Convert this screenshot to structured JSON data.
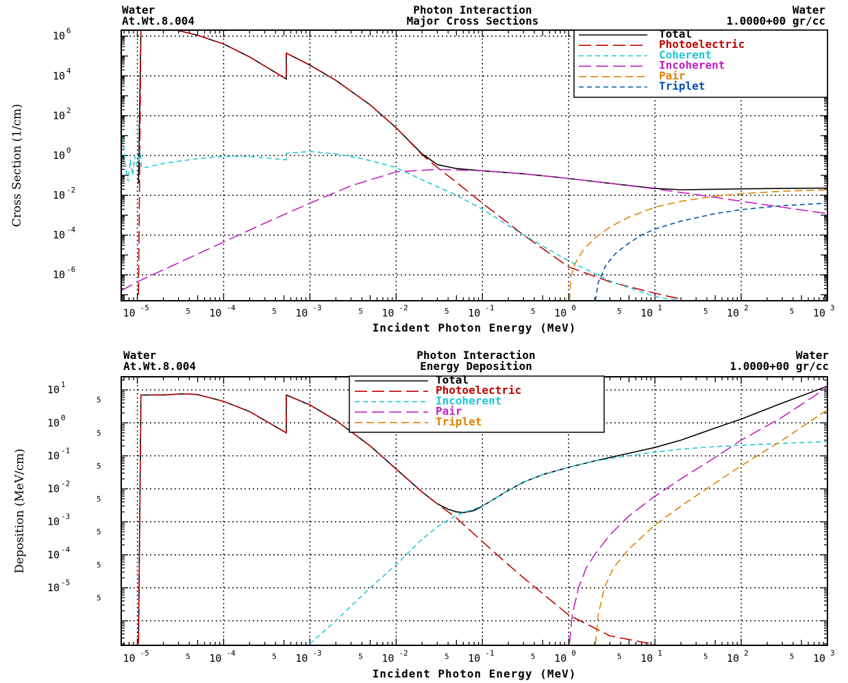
{
  "chart_data": [
    {
      "type": "line",
      "header": {
        "left_line1": "Water",
        "left_line2": "At.Wt.8.004",
        "center_line1": "Photon Interaction",
        "center_line2": "Major Cross Sections",
        "right_line1": "Water",
        "right_line2": "1.0000+00 gr/cc"
      },
      "xlabel": "Incident Photon Energy (MeV)",
      "ylabel": "Cross Section (1/cm)",
      "xscale": "log",
      "yscale": "log",
      "xlim": [
        6.5e-06,
        1000
      ],
      "ylim": [
        5e-08,
        2000000
      ],
      "x_ticks": [
        {
          "base": "10",
          "exp": "-5"
        },
        {
          "base": "5"
        },
        {
          "base": "10",
          "exp": "-4"
        },
        {
          "base": "5"
        },
        {
          "base": "10",
          "exp": "-3"
        },
        {
          "base": "5"
        },
        {
          "base": "10",
          "exp": "-2"
        },
        {
          "base": "5"
        },
        {
          "base": "10",
          "exp": "-1"
        },
        {
          "base": "5"
        },
        {
          "base": "10",
          "exp": "0"
        },
        {
          "base": "5"
        },
        {
          "base": "10",
          "exp": "1"
        },
        {
          "base": "5"
        },
        {
          "base": "10",
          "exp": "2"
        },
        {
          "base": "5"
        },
        {
          "base": "10",
          "exp": "3"
        }
      ],
      "y_ticks": [
        {
          "base": "10",
          "exp": "6"
        },
        {
          "base": "10",
          "exp": "4"
        },
        {
          "base": "10",
          "exp": "2"
        },
        {
          "base": "10",
          "exp": "0"
        },
        {
          "base": "10",
          "exp": "-2"
        },
        {
          "base": "10",
          "exp": "-4"
        },
        {
          "base": "10",
          "exp": "-6"
        }
      ],
      "grid": true,
      "legend_position": "top-right",
      "series": [
        {
          "name": "Total",
          "color": "#000000",
          "dash": "solid",
          "x": [
            1.03e-05,
            1.1e-05,
            1.3e-05,
            2e-05,
            3e-05,
            5e-05,
            0.0001,
            0.0002,
            0.000532,
            0.000533,
            0.001,
            0.002,
            0.005,
            0.01,
            0.02,
            0.03,
            0.05,
            0.1,
            0.3,
            1,
            3,
            10,
            20,
            50,
            100,
            300,
            1000
          ],
          "y": [
            0.04,
            3000000,
            3000000,
            2500000,
            1900000,
            1100000,
            400000,
            90000,
            7000,
            140000,
            35000,
            6000,
            350,
            25,
            1.2,
            0.35,
            0.22,
            0.17,
            0.12,
            0.07,
            0.04,
            0.022,
            0.019,
            0.02,
            0.021,
            0.022,
            0.023
          ]
        },
        {
          "name": "Photoelectric",
          "color": "#c00000",
          "dash": "long",
          "x": [
            1.03e-05,
            1.1e-05,
            1.3e-05,
            2e-05,
            3e-05,
            5e-05,
            0.0001,
            0.0002,
            0.000532,
            0.000533,
            0.001,
            0.002,
            0.005,
            0.01,
            0.02,
            0.03,
            0.05,
            0.1,
            0.3,
            1,
            3,
            10,
            20
          ],
          "y": [
            1e-07,
            3000000,
            3000000,
            2500000,
            1900000,
            1100000,
            400000,
            90000,
            7000,
            140000,
            35000,
            6000,
            350,
            25,
            1.1,
            0.25,
            0.045,
            0.004,
            0.0001,
            2.5e-06,
            4.5e-07,
            1.2e-07,
            6e-08
          ]
        },
        {
          "name": "Coherent",
          "color": "#1ec8d8",
          "dash": "short",
          "x": [
            6.8e-06,
            7.3e-06,
            7.8e-06,
            8.3e-06,
            8.8e-06,
            9.3e-06,
            9.8e-06,
            1.03e-05,
            1.07e-05,
            1.12e-05,
            1.25e-05,
            2e-05,
            5e-05,
            0.0001,
            0.0002,
            0.000532,
            0.000533,
            0.001,
            0.002,
            0.004,
            0.01,
            0.02,
            0.05,
            0.1,
            0.3,
            1,
            3,
            10,
            20,
            50
          ],
          "y": [
            8,
            0.3,
            0.05,
            0.6,
            0.1,
            0.9,
            0.3,
            0.6,
            2,
            0.25,
            0.25,
            0.4,
            0.7,
            0.9,
            0.9,
            0.6,
            1.3,
            1.6,
            1.2,
            0.7,
            0.25,
            0.06,
            0.01,
            0.002,
            0.0001,
            5e-06,
            5e-07,
            8e-08,
            5e-08,
            5e-08
          ]
        },
        {
          "name": "Incoherent",
          "color": "#c020c0",
          "dash": "long",
          "x": [
            6.5e-06,
            1e-05,
            3e-05,
            0.0001,
            0.0003,
            0.001,
            0.003,
            0.01,
            0.03,
            0.1,
            0.3,
            1,
            3,
            10,
            30,
            100,
            300,
            1000
          ],
          "y": [
            1.6e-07,
            4.5e-07,
            4e-06,
            4.5e-05,
            0.0004,
            0.004,
            0.03,
            0.15,
            0.2,
            0.17,
            0.12,
            0.07,
            0.04,
            0.021,
            0.011,
            0.005,
            0.0025,
            0.0012
          ]
        },
        {
          "name": "Pair",
          "color": "#e08000",
          "dash": "mid",
          "x": [
            1.022,
            1.06,
            1.2,
            1.5,
            2,
            3,
            5,
            10,
            20,
            50,
            100,
            300,
            1000
          ],
          "y": [
            5e-08,
            8e-07,
            4e-06,
            2e-05,
            7e-05,
            0.00025,
            0.0008,
            0.0025,
            0.005,
            0.009,
            0.012,
            0.016,
            0.019
          ]
        },
        {
          "name": "Triplet",
          "color": "#0050b0",
          "dash": "short",
          "x": [
            2.044,
            2.2,
            2.7,
            3.5,
            5,
            7,
            10,
            20,
            50,
            100,
            300,
            1000
          ],
          "y": [
            5e-08,
            4e-07,
            3e-06,
            1.2e-05,
            4e-05,
            0.0001,
            0.0002,
            0.0005,
            0.0012,
            0.0019,
            0.003,
            0.004
          ]
        }
      ]
    },
    {
      "type": "line",
      "header": {
        "left_line1": "Water",
        "left_line2": "At.Wt.8.004",
        "center_line1": "Photon Interaction",
        "center_line2": "Energy Deposition",
        "right_line1": "Water",
        "right_line2": "1.0000+00 gr/cc"
      },
      "xlabel": "Incident Photon Energy (MeV)",
      "ylabel": "Deposition (MeV/cm)",
      "xscale": "log",
      "yscale": "log",
      "xlim": [
        6.5e-06,
        1000
      ],
      "ylim": [
        1.8e-07,
        25
      ],
      "x_ticks": [
        {
          "base": "10",
          "exp": "-5"
        },
        {
          "base": "5"
        },
        {
          "base": "10",
          "exp": "-4"
        },
        {
          "base": "5"
        },
        {
          "base": "10",
          "exp": "-3"
        },
        {
          "base": "5"
        },
        {
          "base": "10",
          "exp": "-2"
        },
        {
          "base": "5"
        },
        {
          "base": "10",
          "exp": "-1"
        },
        {
          "base": "5"
        },
        {
          "base": "10",
          "exp": "0"
        },
        {
          "base": "5"
        },
        {
          "base": "10",
          "exp": "1"
        },
        {
          "base": "5"
        },
        {
          "base": "10",
          "exp": "2"
        },
        {
          "base": "5"
        },
        {
          "base": "10",
          "exp": "3"
        }
      ],
      "y_ticks": [
        {
          "base": "10",
          "exp": "1"
        },
        {
          "base": "5"
        },
        {
          "base": "10",
          "exp": "0"
        },
        {
          "base": "5"
        },
        {
          "base": "10",
          "exp": "-1"
        },
        {
          "base": "5"
        },
        {
          "base": "10",
          "exp": "-2"
        },
        {
          "base": "5"
        },
        {
          "base": "10",
          "exp": "-3"
        },
        {
          "base": "5"
        },
        {
          "base": "10",
          "exp": "-4"
        },
        {
          "base": "5"
        },
        {
          "base": "10",
          "exp": "-5"
        },
        {
          "base": "5"
        }
      ],
      "grid": true,
      "legend_position": "top-center",
      "series": [
        {
          "name": "Total",
          "color": "#000000",
          "dash": "solid",
          "x": [
            1.03e-05,
            1.1e-05,
            1.5e-05,
            2e-05,
            3e-05,
            4e-05,
            5e-05,
            0.0001,
            0.0002,
            0.000532,
            0.000533,
            0.001,
            0.002,
            0.005,
            0.01,
            0.02,
            0.03,
            0.04,
            0.05,
            0.06,
            0.08,
            0.1,
            0.2,
            0.3,
            0.5,
            1,
            2,
            5,
            10,
            20,
            50,
            100,
            300,
            1000
          ],
          "y": [
            2e-07,
            7,
            7,
            7,
            7.5,
            7.5,
            7.2,
            4.5,
            2.2,
            0.5,
            7,
            3.5,
            1.2,
            0.2,
            0.04,
            0.008,
            0.0035,
            0.0024,
            0.002,
            0.0019,
            0.0022,
            0.003,
            0.009,
            0.016,
            0.027,
            0.045,
            0.07,
            0.12,
            0.18,
            0.3,
            0.7,
            1.3,
            4,
            13
          ]
        },
        {
          "name": "Photoelectric",
          "color": "#c00000",
          "dash": "long",
          "x": [
            1.03e-05,
            1.1e-05,
            1.5e-05,
            2e-05,
            3e-05,
            4e-05,
            5e-05,
            0.0001,
            0.0002,
            0.000532,
            0.000533,
            0.001,
            0.002,
            0.005,
            0.01,
            0.02,
            0.03,
            0.05,
            0.1,
            0.2,
            0.3,
            1,
            3,
            10
          ],
          "y": [
            2e-07,
            7,
            7,
            7,
            7.5,
            7.5,
            7.2,
            4.5,
            2.2,
            0.5,
            7,
            3.5,
            1.2,
            0.2,
            0.04,
            0.008,
            0.0035,
            0.0013,
            0.00025,
            5e-05,
            2e-05,
            1.5e-06,
            3.5e-07,
            1.9e-07
          ]
        },
        {
          "name": "Incoherent",
          "color": "#1ec8d8",
          "dash": "short",
          "x": [
            0.001,
            0.002,
            0.005,
            0.01,
            0.02,
            0.03,
            0.05,
            0.1,
            0.2,
            0.3,
            0.5,
            1,
            2,
            5,
            10,
            20,
            50,
            100,
            300,
            1000
          ],
          "y": [
            2e-07,
            1e-06,
            1e-05,
            5e-05,
            0.0003,
            0.0007,
            0.0016,
            0.003,
            0.009,
            0.016,
            0.027,
            0.045,
            0.07,
            0.1,
            0.13,
            0.16,
            0.19,
            0.21,
            0.24,
            0.27
          ]
        },
        {
          "name": "Pair",
          "color": "#c020c0",
          "dash": "long",
          "x": [
            1.022,
            1.1,
            1.3,
            1.6,
            2,
            3,
            5,
            10,
            20,
            50,
            100,
            300,
            1000
          ],
          "y": [
            2e-07,
            1.5e-06,
            1e-05,
            4e-05,
            0.0001,
            0.0004,
            0.0015,
            0.006,
            0.02,
            0.09,
            0.3,
            1.5,
            12
          ]
        },
        {
          "name": "Triplet",
          "color": "#e08000",
          "dash": "mid",
          "x": [
            2.044,
            2.2,
            2.6,
            3.3,
            5,
            10,
            20,
            50,
            100,
            300,
            1000
          ],
          "y": [
            2e-07,
            1.5e-06,
            1e-05,
            4e-05,
            0.00015,
            0.0008,
            0.003,
            0.015,
            0.05,
            0.3,
            2.5
          ]
        }
      ]
    }
  ]
}
